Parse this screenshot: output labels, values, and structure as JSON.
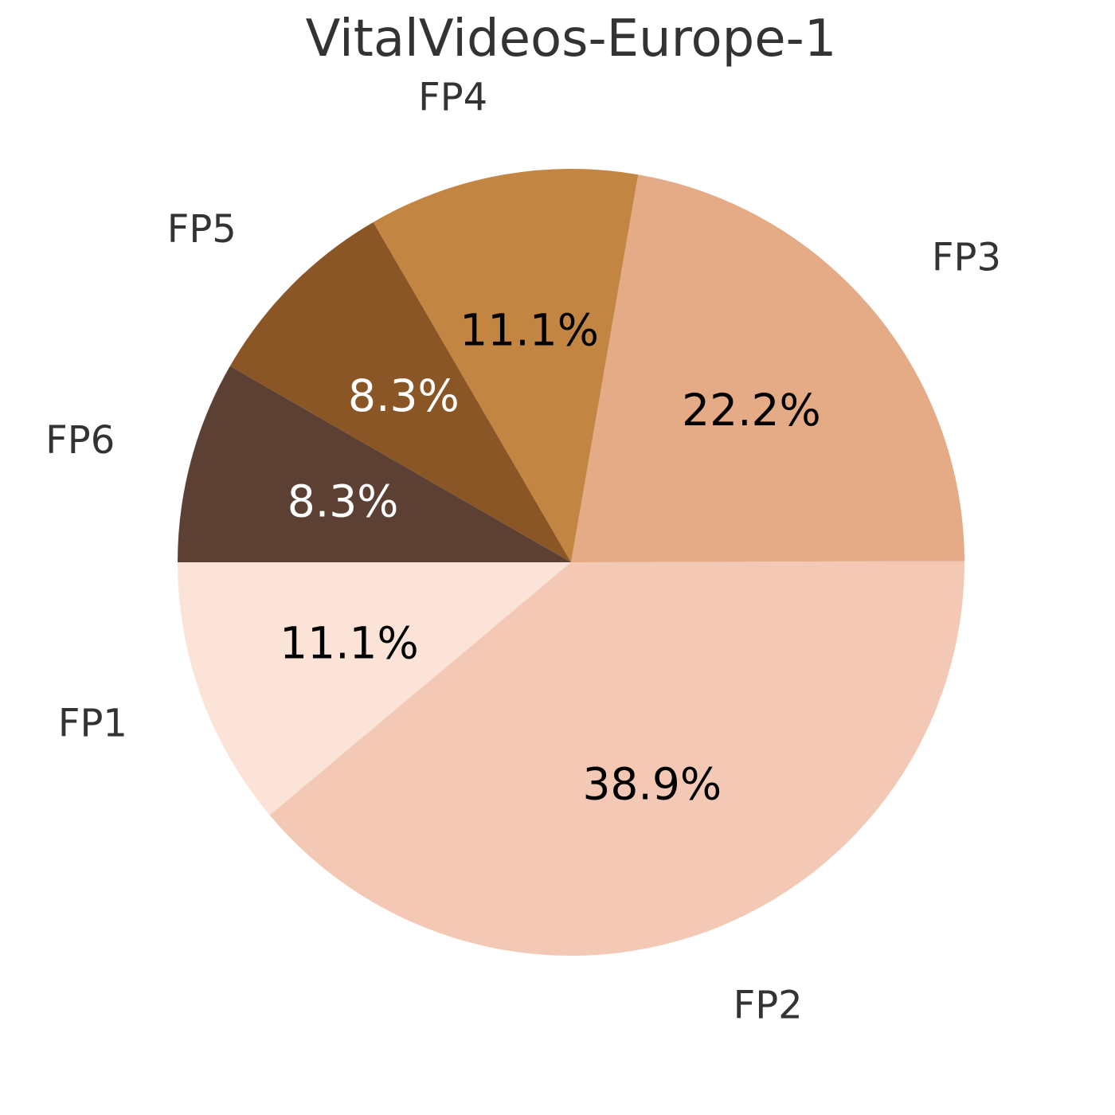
{
  "chart_data": {
    "type": "pie",
    "title": "VitalVideos-Europe-1",
    "start_angle_deg": 180,
    "direction": "counterclockwise",
    "slices": [
      {
        "label": "FP1",
        "value": 11.1,
        "pct_text": "11.1%",
        "color": "#fbe4d7",
        "pct_color": "#000000"
      },
      {
        "label": "FP2",
        "value": 38.9,
        "pct_text": "38.9%",
        "color": "#f3c9b5",
        "pct_color": "#000000"
      },
      {
        "label": "FP3",
        "value": 22.2,
        "pct_text": "22.2%",
        "color": "#e5aa86",
        "pct_color": "#000000"
      },
      {
        "label": "FP4",
        "value": 11.1,
        "pct_text": "11.1%",
        "color": "#c38542",
        "pct_color": "#000000"
      },
      {
        "label": "FP5",
        "value": 8.3,
        "pct_text": "8.3%",
        "color": "#8b5626",
        "pct_color": "#ffffff"
      },
      {
        "label": "FP6",
        "value": 8.3,
        "pct_text": "8.3%",
        "color": "#5c4033",
        "pct_color": "#ffffff"
      }
    ]
  }
}
